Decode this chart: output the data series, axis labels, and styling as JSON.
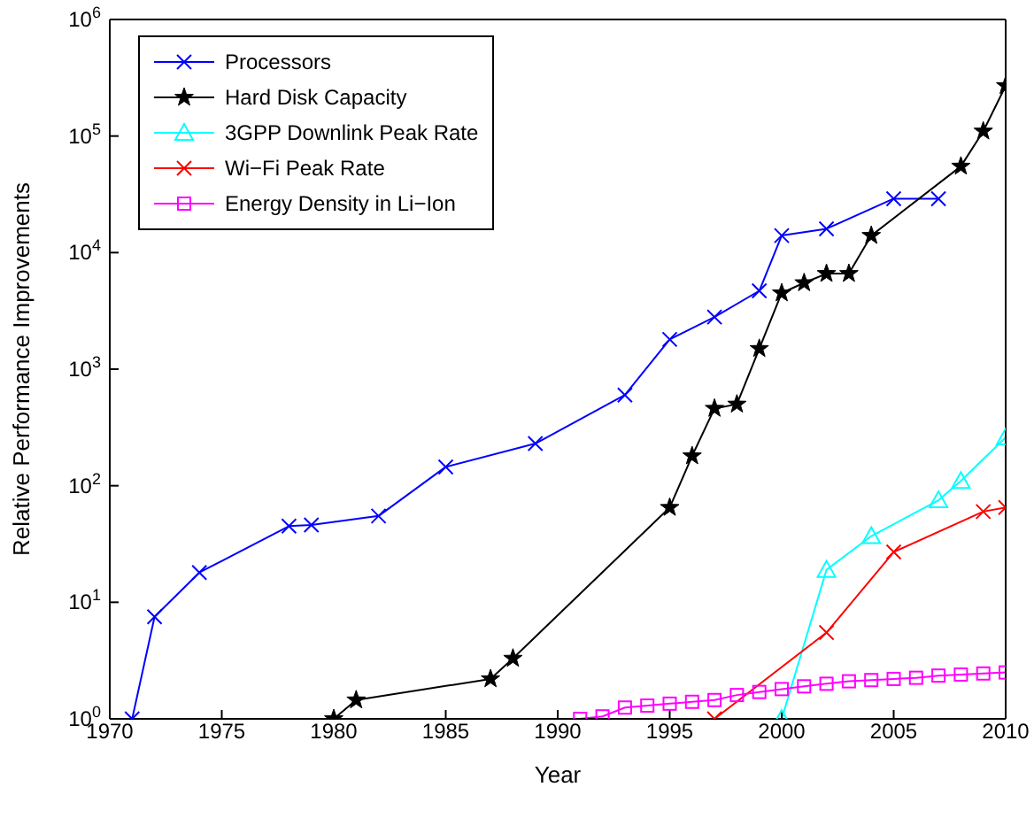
{
  "chart_data": {
    "type": "line",
    "xlabel": "Year",
    "ylabel": "Relative Performance Improvements",
    "log": "y",
    "xlim": [
      1970,
      2010
    ],
    "xticks": [
      1970,
      1975,
      1980,
      1985,
      1990,
      1995,
      2000,
      2005,
      2010
    ],
    "ylim": [
      1,
      1000000
    ],
    "yticks": [
      {
        "value": 1,
        "label": "10$^{0}$"
      },
      {
        "value": 10,
        "label": "10$^{1}$"
      },
      {
        "value": 100,
        "label": "10$^{2}$"
      },
      {
        "value": 1000,
        "label": "10$^{3}$"
      },
      {
        "value": 10000,
        "label": "10$^{4}$"
      },
      {
        "value": 100000,
        "label": "10$^{5}$"
      },
      {
        "value": 1000000,
        "label": "10$^{6}$"
      }
    ],
    "legend": "top left",
    "series": [
      {
        "name": "Processors",
        "color": "#0000ff",
        "marker": "cross",
        "x": [
          1971,
          1972,
          1974,
          1978,
          1979,
          1982,
          1985,
          1989,
          1993,
          1995,
          1997,
          1999,
          2000,
          2002,
          2005,
          2007
        ],
        "values": [
          1,
          7.5,
          18,
          45,
          46,
          55,
          145,
          230,
          600,
          1800,
          2800,
          4700,
          14000,
          16000,
          29000,
          29000
        ]
      },
      {
        "name": "Hard Disk Capacity",
        "color": "#000000",
        "marker": "star",
        "x": [
          1980,
          1981,
          1987,
          1988,
          1995,
          1996,
          1997,
          1998,
          1999,
          2000,
          2001,
          2002,
          2003,
          2004,
          2008,
          2009,
          2010
        ],
        "values": [
          1,
          1.45,
          2.2,
          3.3,
          65,
          180,
          460,
          500,
          1500,
          4500,
          5500,
          6600,
          6600,
          14000,
          55000,
          110000,
          270000
        ]
      },
      {
        "name": "3GPP Downlink Peak Rate",
        "color": "#00ffff",
        "marker": "triangle",
        "x": [
          2000,
          2002,
          2004,
          2007,
          2008,
          2010
        ],
        "values": [
          1,
          19,
          37,
          75,
          110,
          260
        ]
      },
      {
        "name": "Wi−Fi Peak Rate",
        "color": "#ff0000",
        "marker": "cross",
        "x": [
          1997,
          2002,
          2005,
          2009,
          2010
        ],
        "values": [
          1,
          5.5,
          27,
          60,
          65
        ]
      },
      {
        "name": "Energy Density in Li−Ion",
        "color": "#ff00ff",
        "marker": "square",
        "x": [
          1991,
          1992,
          1993,
          1994,
          1995,
          1996,
          1997,
          1998,
          1999,
          2000,
          2001,
          2002,
          2003,
          2004,
          2005,
          2006,
          2007,
          2008,
          2009,
          2010
        ],
        "values": [
          1,
          1.05,
          1.25,
          1.3,
          1.35,
          1.4,
          1.45,
          1.6,
          1.7,
          1.8,
          1.9,
          2,
          2.1,
          2.15,
          2.2,
          2.25,
          2.35,
          2.4,
          2.45,
          2.5
        ]
      }
    ]
  }
}
